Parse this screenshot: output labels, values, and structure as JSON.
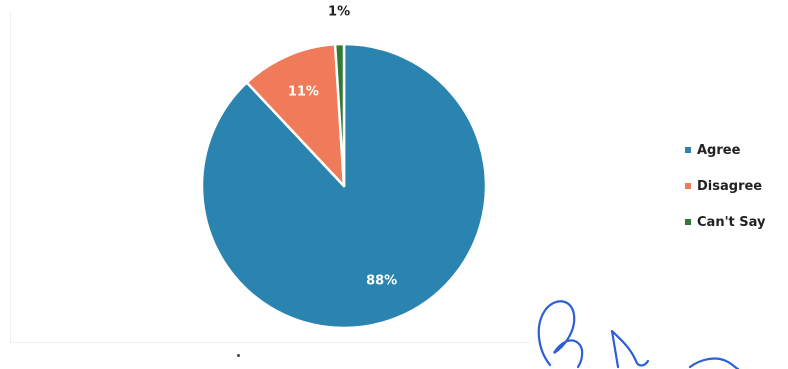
{
  "chart_data": {
    "type": "pie",
    "slices": [
      {
        "label": "Agree",
        "value": 88,
        "display": "88%",
        "color": "#2b83b0",
        "label_color": "#ffffff"
      },
      {
        "label": "Disagree",
        "value": 11,
        "display": "11%",
        "color": "#f07b5a",
        "label_color": "#ffffff"
      },
      {
        "label": "Can't Say",
        "value": 1,
        "display": "1%",
        "color": "#2f7a36",
        "label_color": "#222222"
      }
    ],
    "legend_position": "right"
  },
  "legend": [
    {
      "label": "Agree",
      "color": "#2b83b0"
    },
    {
      "label": "Disagree",
      "color": "#f07b5a"
    },
    {
      "label": "Can't Say",
      "color": "#2f7a36"
    }
  ]
}
